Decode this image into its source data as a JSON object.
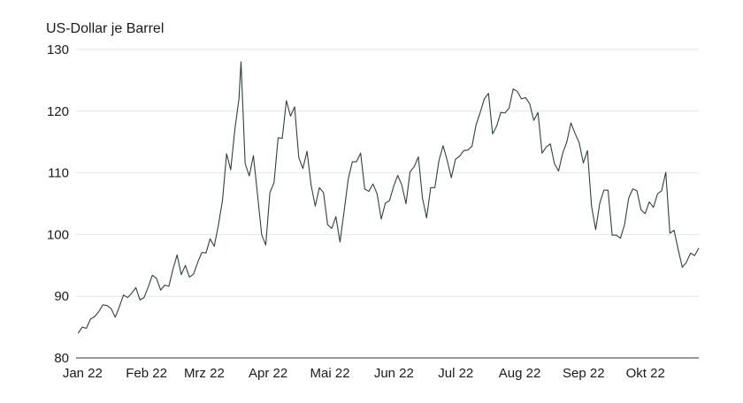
{
  "chart_data": {
    "type": "line",
    "title": "",
    "ylabel": "US-Dollar je Barrel",
    "xlabel": "",
    "ylim": [
      80,
      130
    ],
    "yticks": [
      80,
      90,
      100,
      110,
      120,
      130
    ],
    "grid": "horizontal",
    "line_color": "#2f4040",
    "grid_color": "#e6e6e6",
    "x_range": [
      "2022-01-03",
      "2022-11-01"
    ],
    "xticks": [
      {
        "label": "Jan 22",
        "date": "2022-01-01"
      },
      {
        "label": "Feb 22",
        "date": "2022-02-01"
      },
      {
        "label": "Mrz 22",
        "date": "2022-03-01"
      },
      {
        "label": "Apr 22",
        "date": "2022-04-01"
      },
      {
        "label": "Mai 22",
        "date": "2022-05-01"
      },
      {
        "label": "Jun 22",
        "date": "2022-06-01"
      },
      {
        "label": "Jul 22",
        "date": "2022-07-01"
      },
      {
        "label": "Aug 22",
        "date": "2022-08-01"
      },
      {
        "label": "Sep 22",
        "date": "2022-09-01"
      },
      {
        "label": "Okt 22",
        "date": "2022-10-01"
      }
    ],
    "series": [
      {
        "points": [
          [
            "2022-01-04",
            84.0
          ],
          [
            "2022-01-06",
            85.0
          ],
          [
            "2022-01-08",
            84.8
          ],
          [
            "2022-01-10",
            86.3
          ],
          [
            "2022-01-12",
            86.7
          ],
          [
            "2022-01-14",
            87.5
          ],
          [
            "2022-01-16",
            88.6
          ],
          [
            "2022-01-18",
            88.5
          ],
          [
            "2022-01-20",
            88.0
          ],
          [
            "2022-01-22",
            86.6
          ],
          [
            "2022-01-24",
            88.3
          ],
          [
            "2022-01-26",
            90.2
          ],
          [
            "2022-01-28",
            89.8
          ],
          [
            "2022-01-30",
            90.5
          ],
          [
            "2022-02-01",
            91.4
          ],
          [
            "2022-02-03",
            89.4
          ],
          [
            "2022-02-05",
            89.8
          ],
          [
            "2022-02-07",
            91.5
          ],
          [
            "2022-02-09",
            93.4
          ],
          [
            "2022-02-11",
            92.9
          ],
          [
            "2022-02-13",
            91.0
          ],
          [
            "2022-02-15",
            91.8
          ],
          [
            "2022-02-17",
            91.6
          ],
          [
            "2022-02-19",
            94.4
          ],
          [
            "2022-02-21",
            96.7
          ],
          [
            "2022-02-23",
            93.5
          ],
          [
            "2022-02-25",
            95.0
          ],
          [
            "2022-02-27",
            93.1
          ],
          [
            "2022-03-01",
            93.6
          ],
          [
            "2022-03-03",
            95.5
          ],
          [
            "2022-03-05",
            97.1
          ],
          [
            "2022-03-07",
            97.0
          ],
          [
            "2022-03-09",
            99.3
          ],
          [
            "2022-03-11",
            98.1
          ],
          [
            "2022-03-13",
            101.5
          ],
          [
            "2022-03-15",
            105.5
          ],
          [
            "2022-03-17",
            113.1
          ],
          [
            "2022-03-19",
            110.5
          ],
          [
            "2022-03-21",
            117.0
          ],
          [
            "2022-03-23",
            122.0
          ],
          [
            "2022-03-24",
            128.0
          ],
          [
            "2022-03-26",
            111.5
          ],
          [
            "2022-03-28",
            109.5
          ],
          [
            "2022-03-30",
            112.8
          ],
          [
            "2022-04-01",
            106.5
          ],
          [
            "2022-04-03",
            100.0
          ],
          [
            "2022-04-05",
            98.3
          ],
          [
            "2022-04-07",
            106.8
          ],
          [
            "2022-04-09",
            108.4
          ],
          [
            "2022-04-11",
            115.7
          ],
          [
            "2022-04-13",
            115.6
          ],
          [
            "2022-04-15",
            121.7
          ],
          [
            "2022-04-17",
            119.2
          ],
          [
            "2022-04-19",
            120.7
          ],
          [
            "2022-04-21",
            112.5
          ],
          [
            "2022-04-23",
            110.7
          ],
          [
            "2022-04-25",
            113.5
          ],
          [
            "2022-04-27",
            108.0
          ],
          [
            "2022-04-29",
            104.6
          ],
          [
            "2022-05-01",
            107.6
          ],
          [
            "2022-05-03",
            106.8
          ],
          [
            "2022-05-05",
            101.6
          ],
          [
            "2022-05-07",
            101.0
          ],
          [
            "2022-05-09",
            102.9
          ],
          [
            "2022-05-11",
            98.8
          ],
          [
            "2022-05-13",
            103.8
          ],
          [
            "2022-05-15",
            109.0
          ],
          [
            "2022-05-17",
            111.8
          ],
          [
            "2022-05-19",
            111.8
          ],
          [
            "2022-05-21",
            113.2
          ],
          [
            "2022-05-23",
            107.4
          ],
          [
            "2022-05-25",
            107.0
          ],
          [
            "2022-05-27",
            108.2
          ],
          [
            "2022-05-29",
            106.6
          ],
          [
            "2022-05-31",
            102.5
          ],
          [
            "2022-06-02",
            105.1
          ],
          [
            "2022-06-04",
            105.5
          ],
          [
            "2022-06-06",
            107.8
          ],
          [
            "2022-06-08",
            109.6
          ],
          [
            "2022-06-10",
            108.0
          ],
          [
            "2022-06-12",
            105.0
          ],
          [
            "2022-06-14",
            110.2
          ],
          [
            "2022-06-16",
            111.0
          ],
          [
            "2022-06-18",
            112.6
          ],
          [
            "2022-06-20",
            105.9
          ],
          [
            "2022-06-22",
            102.7
          ],
          [
            "2022-06-24",
            107.6
          ],
          [
            "2022-06-26",
            107.6
          ],
          [
            "2022-06-28",
            112.0
          ],
          [
            "2022-06-30",
            114.4
          ],
          [
            "2022-07-02",
            112.0
          ],
          [
            "2022-07-04",
            109.2
          ],
          [
            "2022-07-06",
            112.2
          ],
          [
            "2022-07-08",
            112.7
          ],
          [
            "2022-07-10",
            113.6
          ],
          [
            "2022-07-12",
            113.7
          ],
          [
            "2022-07-14",
            114.3
          ],
          [
            "2022-07-16",
            117.8
          ],
          [
            "2022-07-18",
            119.8
          ],
          [
            "2022-07-20",
            122.0
          ],
          [
            "2022-07-22",
            122.9
          ],
          [
            "2022-07-24",
            116.3
          ],
          [
            "2022-07-26",
            117.6
          ],
          [
            "2022-07-28",
            119.8
          ],
          [
            "2022-07-30",
            119.7
          ],
          [
            "2022-08-01",
            120.5
          ],
          [
            "2022-08-03",
            123.6
          ],
          [
            "2022-08-05",
            123.2
          ],
          [
            "2022-08-07",
            122.0
          ],
          [
            "2022-08-09",
            122.2
          ],
          [
            "2022-08-11",
            121.2
          ],
          [
            "2022-08-13",
            118.5
          ],
          [
            "2022-08-15",
            119.8
          ],
          [
            "2022-08-17",
            113.2
          ],
          [
            "2022-08-19",
            114.2
          ],
          [
            "2022-08-21",
            114.7
          ],
          [
            "2022-08-23",
            111.5
          ],
          [
            "2022-08-25",
            110.3
          ],
          [
            "2022-08-27",
            113.2
          ],
          [
            "2022-08-29",
            115.0
          ],
          [
            "2022-08-31",
            118.1
          ],
          [
            "2022-09-02",
            116.4
          ],
          [
            "2022-09-04",
            114.9
          ],
          [
            "2022-09-06",
            111.6
          ],
          [
            "2022-09-08",
            113.6
          ],
          [
            "2022-09-10",
            104.6
          ],
          [
            "2022-09-12",
            100.8
          ],
          [
            "2022-09-14",
            105.1
          ],
          [
            "2022-09-16",
            107.2
          ],
          [
            "2022-09-18",
            107.2
          ],
          [
            "2022-09-20",
            99.9
          ],
          [
            "2022-09-22",
            99.9
          ],
          [
            "2022-09-24",
            99.4
          ],
          [
            "2022-09-26",
            101.6
          ],
          [
            "2022-09-28",
            105.9
          ],
          [
            "2022-09-30",
            107.4
          ],
          [
            "2022-10-02",
            107.1
          ],
          [
            "2022-10-04",
            104.0
          ],
          [
            "2022-10-06",
            103.4
          ],
          [
            "2022-10-08",
            105.3
          ],
          [
            "2022-10-10",
            104.4
          ],
          [
            "2022-10-12",
            106.6
          ],
          [
            "2022-10-14",
            107.1
          ],
          [
            "2022-10-16",
            110.1
          ],
          [
            "2022-10-18",
            100.2
          ],
          [
            "2022-10-20",
            100.7
          ],
          [
            "2022-10-22",
            97.6
          ],
          [
            "2022-10-24",
            94.7
          ],
          [
            "2022-10-26",
            95.5
          ],
          [
            "2022-10-28",
            97.0
          ],
          [
            "2022-10-30",
            96.6
          ],
          [
            "2022-11-01",
            97.8
          ]
        ]
      }
    ]
  }
}
